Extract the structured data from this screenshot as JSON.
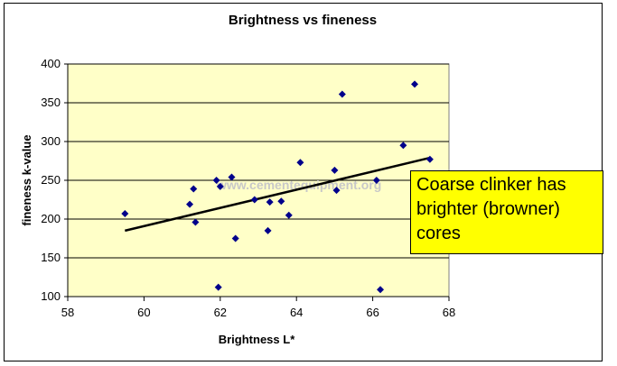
{
  "chart_data": {
    "type": "scatter",
    "title": "Brightness vs fineness",
    "xlabel": "Brightness L*",
    "ylabel": "fineness k-value",
    "xlim": [
      58,
      68
    ],
    "ylim": [
      100,
      400
    ],
    "x_ticks": [
      58,
      60,
      62,
      64,
      66,
      68
    ],
    "y_ticks": [
      100,
      150,
      200,
      250,
      300,
      350,
      400
    ],
    "grid": "horizontal",
    "plot_background": "#ffffc8",
    "marker_color": "#00008b",
    "trendline_color": "#000000",
    "trendline": {
      "x": [
        59.5,
        67.5
      ],
      "y": [
        185,
        279
      ]
    },
    "points": [
      {
        "x": 59.5,
        "y": 207
      },
      {
        "x": 61.2,
        "y": 219
      },
      {
        "x": 61.3,
        "y": 239
      },
      {
        "x": 61.35,
        "y": 196
      },
      {
        "x": 61.9,
        "y": 250
      },
      {
        "x": 62.0,
        "y": 242
      },
      {
        "x": 61.95,
        "y": 112
      },
      {
        "x": 62.3,
        "y": 254
      },
      {
        "x": 62.4,
        "y": 175
      },
      {
        "x": 62.9,
        "y": 225
      },
      {
        "x": 63.3,
        "y": 222
      },
      {
        "x": 63.25,
        "y": 185
      },
      {
        "x": 63.6,
        "y": 223
      },
      {
        "x": 63.8,
        "y": 205
      },
      {
        "x": 64.1,
        "y": 273
      },
      {
        "x": 65.0,
        "y": 263
      },
      {
        "x": 65.05,
        "y": 237
      },
      {
        "x": 65.2,
        "y": 361
      },
      {
        "x": 66.1,
        "y": 250
      },
      {
        "x": 66.2,
        "y": 109
      },
      {
        "x": 66.8,
        "y": 295
      },
      {
        "x": 67.1,
        "y": 374
      },
      {
        "x": 67.5,
        "y": 277
      }
    ]
  },
  "watermark": "www.cementequipment.org",
  "annotation": {
    "text": "Coarse clinker has brighter (browner) cores"
  }
}
